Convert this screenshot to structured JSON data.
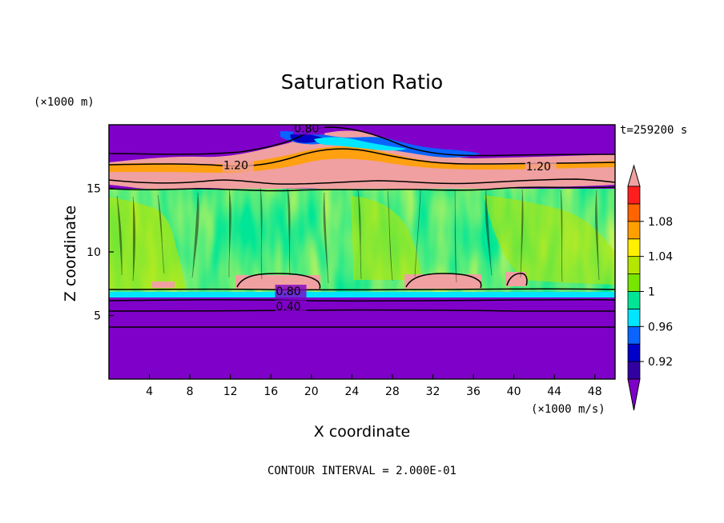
{
  "chart_data": {
    "type": "heatmap",
    "title": "Saturation Ratio",
    "xlabel": "X coordinate",
    "ylabel": "Z coordinate",
    "x_units": "(×1000 m/s)",
    "y_units": "(×1000 m)",
    "time_label": "t=259200 s",
    "footer": "CONTOUR INTERVAL = 2.000E-01",
    "xlim": [
      0,
      50
    ],
    "ylim": [
      0,
      20
    ],
    "xticks": [
      "4",
      "8",
      "12",
      "16",
      "20",
      "24",
      "28",
      "32",
      "36",
      "40",
      "44",
      "48"
    ],
    "xtick_values": [
      4,
      8,
      12,
      16,
      20,
      24,
      28,
      32,
      36,
      40,
      44,
      48
    ],
    "yticks": [
      "5",
      "10",
      "15"
    ],
    "ytick_values": [
      5,
      10,
      15
    ],
    "colorbar": {
      "labels": [
        "0.92",
        "0.96",
        "1",
        "1.04",
        "1.08"
      ],
      "label_values": [
        0.92,
        0.96,
        1.0,
        1.04,
        1.08
      ],
      "colors": [
        "#7f00c8",
        "#3200a0",
        "#0000c8",
        "#0a64ff",
        "#00e6ff",
        "#00e696",
        "#78e600",
        "#b4e600",
        "#fff000",
        "#ffa000",
        "#ff6400",
        "#ff1e1e",
        "#f0a0a0"
      ]
    },
    "contour_labels": [
      {
        "text": "0.80",
        "x": 18.3,
        "y": 19.4
      },
      {
        "text": "1.20",
        "x": 11.3,
        "y": 16.5
      },
      {
        "text": "1.20",
        "x": 41.2,
        "y": 16.4
      },
      {
        "text": "0.80",
        "x": 16.5,
        "y": 6.6
      },
      {
        "text": "0.40",
        "x": 16.5,
        "y": 5.4
      }
    ],
    "regions": {
      "lower_band": {
        "y_range": [
          0,
          6.6
        ],
        "value": 0.88
      },
      "cloud_layer": {
        "y_range": [
          6.6,
          15
        ],
        "value_range": [
          0.98,
          1.02
        ]
      },
      "supersaturated_layer": {
        "y_range": [
          15,
          18
        ],
        "value": 1.2
      },
      "upper_band": {
        "y_range": [
          18,
          20
        ],
        "value": 0.88
      }
    },
    "lower_contours": [
      0.2,
      0.4,
      0.6,
      0.8
    ],
    "lower_contour_y": [
      4.0,
      5.2,
      6.0,
      6.5
    ],
    "grid": false,
    "legend": "right"
  }
}
